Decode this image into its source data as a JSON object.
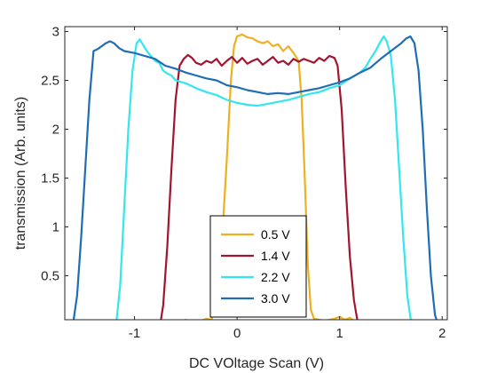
{
  "chart_data": {
    "type": "line",
    "title": "",
    "xlabel": "DC VOltage Scan (V)",
    "ylabel": "transmission (Arb. units)",
    "xlim": [
      -1.68,
      2.05
    ],
    "ylim": [
      0.05,
      3.05
    ],
    "xticks": [
      -1,
      0,
      1,
      2
    ],
    "xtick_labels": [
      "-1",
      "0",
      "1",
      "2"
    ],
    "yticks": [
      0.5,
      1,
      1.5,
      2,
      2.5,
      3
    ],
    "ytick_labels": [
      "0.5",
      "1",
      "1.5",
      "2",
      "2.5",
      "3"
    ],
    "grid": false,
    "legend_position": "bottom-center",
    "series": [
      {
        "name": "0.5 V",
        "color": "#EDB120",
        "points": [
          [
            -0.65,
            0.0
          ],
          [
            -0.5,
            0.05
          ],
          [
            -0.4,
            0.02
          ],
          [
            -0.3,
            0.06
          ],
          [
            -0.25,
            0.05
          ],
          [
            -0.2,
            0.2
          ],
          [
            -0.15,
            0.8
          ],
          [
            -0.1,
            1.7
          ],
          [
            -0.06,
            2.5
          ],
          [
            -0.03,
            2.85
          ],
          [
            0.0,
            2.95
          ],
          [
            0.05,
            2.97
          ],
          [
            0.1,
            2.94
          ],
          [
            0.15,
            2.93
          ],
          [
            0.2,
            2.9
          ],
          [
            0.25,
            2.88
          ],
          [
            0.3,
            2.9
          ],
          [
            0.35,
            2.85
          ],
          [
            0.4,
            2.87
          ],
          [
            0.45,
            2.8
          ],
          [
            0.5,
            2.85
          ],
          [
            0.55,
            2.78
          ],
          [
            0.6,
            2.7
          ],
          [
            0.63,
            2.3
          ],
          [
            0.66,
            1.5
          ],
          [
            0.69,
            0.6
          ],
          [
            0.72,
            0.15
          ],
          [
            0.75,
            0.06
          ],
          [
            0.85,
            0.04
          ],
          [
            0.95,
            0.06
          ],
          [
            1.0,
            0.08
          ],
          [
            1.05,
            0.05
          ],
          [
            1.1,
            0.07
          ],
          [
            1.2,
            0.0
          ]
        ]
      },
      {
        "name": "1.4 V",
        "color": "#A2142F",
        "points": [
          [
            -0.75,
            0.0
          ],
          [
            -0.72,
            0.2
          ],
          [
            -0.68,
            0.8
          ],
          [
            -0.64,
            1.6
          ],
          [
            -0.6,
            2.3
          ],
          [
            -0.56,
            2.65
          ],
          [
            -0.52,
            2.72
          ],
          [
            -0.48,
            2.76
          ],
          [
            -0.44,
            2.73
          ],
          [
            -0.4,
            2.68
          ],
          [
            -0.35,
            2.66
          ],
          [
            -0.3,
            2.7
          ],
          [
            -0.25,
            2.68
          ],
          [
            -0.2,
            2.72
          ],
          [
            -0.15,
            2.65
          ],
          [
            -0.1,
            2.7
          ],
          [
            -0.05,
            2.74
          ],
          [
            0.0,
            2.68
          ],
          [
            0.05,
            2.73
          ],
          [
            0.1,
            2.67
          ],
          [
            0.15,
            2.7
          ],
          [
            0.2,
            2.72
          ],
          [
            0.25,
            2.66
          ],
          [
            0.3,
            2.7
          ],
          [
            0.35,
            2.74
          ],
          [
            0.4,
            2.68
          ],
          [
            0.45,
            2.7
          ],
          [
            0.5,
            2.66
          ],
          [
            0.55,
            2.72
          ],
          [
            0.6,
            2.69
          ],
          [
            0.65,
            2.72
          ],
          [
            0.7,
            2.7
          ],
          [
            0.75,
            2.68
          ],
          [
            0.8,
            2.73
          ],
          [
            0.85,
            2.7
          ],
          [
            0.9,
            2.75
          ],
          [
            0.95,
            2.73
          ],
          [
            0.98,
            2.65
          ],
          [
            1.02,
            2.2
          ],
          [
            1.06,
            1.4
          ],
          [
            1.1,
            0.7
          ],
          [
            1.14,
            0.25
          ],
          [
            1.18,
            0.0
          ]
        ]
      },
      {
        "name": "2.2 V",
        "color": "#33E6F0",
        "points": [
          [
            -1.18,
            0.0
          ],
          [
            -1.14,
            0.4
          ],
          [
            -1.1,
            1.2
          ],
          [
            -1.06,
            2.0
          ],
          [
            -1.02,
            2.6
          ],
          [
            -0.98,
            2.88
          ],
          [
            -0.95,
            2.92
          ],
          [
            -0.92,
            2.87
          ],
          [
            -0.88,
            2.8
          ],
          [
            -0.84,
            2.75
          ],
          [
            -0.8,
            2.7
          ],
          [
            -0.76,
            2.68
          ],
          [
            -0.72,
            2.6
          ],
          [
            -0.68,
            2.57
          ],
          [
            -0.64,
            2.55
          ],
          [
            -0.6,
            2.5
          ],
          [
            -0.5,
            2.47
          ],
          [
            -0.4,
            2.42
          ],
          [
            -0.3,
            2.38
          ],
          [
            -0.2,
            2.35
          ],
          [
            -0.1,
            2.3
          ],
          [
            0.0,
            2.27
          ],
          [
            0.1,
            2.25
          ],
          [
            0.2,
            2.24
          ],
          [
            0.3,
            2.26
          ],
          [
            0.4,
            2.28
          ],
          [
            0.5,
            2.3
          ],
          [
            0.6,
            2.33
          ],
          [
            0.7,
            2.36
          ],
          [
            0.8,
            2.38
          ],
          [
            0.9,
            2.42
          ],
          [
            1.0,
            2.45
          ],
          [
            1.1,
            2.52
          ],
          [
            1.2,
            2.58
          ],
          [
            1.25,
            2.63
          ],
          [
            1.3,
            2.72
          ],
          [
            1.35,
            2.8
          ],
          [
            1.4,
            2.9
          ],
          [
            1.43,
            2.95
          ],
          [
            1.46,
            2.9
          ],
          [
            1.5,
            2.75
          ],
          [
            1.54,
            2.3
          ],
          [
            1.58,
            1.6
          ],
          [
            1.62,
            0.9
          ],
          [
            1.66,
            0.3
          ],
          [
            1.7,
            0.0
          ]
        ]
      },
      {
        "name": "3.0 V",
        "color": "#1F6EB5",
        "points": [
          [
            -1.6,
            0.0
          ],
          [
            -1.56,
            0.3
          ],
          [
            -1.52,
            0.9
          ],
          [
            -1.48,
            1.6
          ],
          [
            -1.44,
            2.3
          ],
          [
            -1.4,
            2.8
          ],
          [
            -1.36,
            2.82
          ],
          [
            -1.32,
            2.85
          ],
          [
            -1.28,
            2.88
          ],
          [
            -1.24,
            2.9
          ],
          [
            -1.2,
            2.88
          ],
          [
            -1.15,
            2.83
          ],
          [
            -1.1,
            2.8
          ],
          [
            -1.0,
            2.78
          ],
          [
            -0.9,
            2.75
          ],
          [
            -0.8,
            2.72
          ],
          [
            -0.7,
            2.65
          ],
          [
            -0.6,
            2.62
          ],
          [
            -0.5,
            2.58
          ],
          [
            -0.4,
            2.55
          ],
          [
            -0.3,
            2.52
          ],
          [
            -0.2,
            2.5
          ],
          [
            -0.1,
            2.45
          ],
          [
            0.0,
            2.43
          ],
          [
            0.1,
            2.4
          ],
          [
            0.2,
            2.38
          ],
          [
            0.3,
            2.36
          ],
          [
            0.4,
            2.37
          ],
          [
            0.5,
            2.36
          ],
          [
            0.6,
            2.38
          ],
          [
            0.7,
            2.4
          ],
          [
            0.8,
            2.42
          ],
          [
            0.9,
            2.45
          ],
          [
            1.0,
            2.48
          ],
          [
            1.1,
            2.52
          ],
          [
            1.2,
            2.58
          ],
          [
            1.3,
            2.63
          ],
          [
            1.4,
            2.72
          ],
          [
            1.5,
            2.8
          ],
          [
            1.6,
            2.88
          ],
          [
            1.65,
            2.93
          ],
          [
            1.69,
            2.95
          ],
          [
            1.73,
            2.88
          ],
          [
            1.77,
            2.6
          ],
          [
            1.81,
            2.0
          ],
          [
            1.85,
            1.2
          ],
          [
            1.89,
            0.5
          ],
          [
            1.93,
            0.1
          ],
          [
            1.96,
            0.0
          ]
        ]
      }
    ]
  }
}
